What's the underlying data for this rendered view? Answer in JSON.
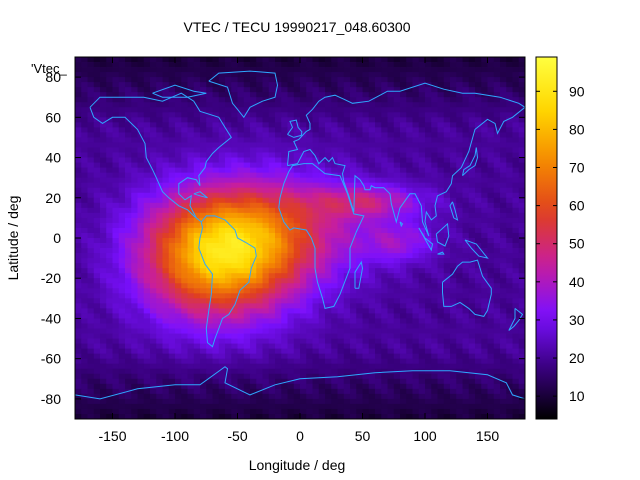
{
  "chart_data": {
    "type": "heatmap",
    "title": "VTEC / TECU 19990217_048.60300",
    "xlabel": "Longitude / deg",
    "ylabel": "Latitude / deg",
    "xlim": [
      -180,
      180
    ],
    "ylim": [
      -90,
      90
    ],
    "xticks": [
      -150,
      -100,
      -50,
      0,
      50,
      100,
      150
    ],
    "yticks": [
      -80,
      -60,
      -40,
      -20,
      0,
      20,
      40,
      60,
      80
    ],
    "colorbar": {
      "label": "",
      "range": [
        4,
        99
      ],
      "ticks": [
        10,
        20,
        30,
        40,
        50,
        60,
        70,
        80,
        90
      ],
      "palette": [
        "#000000",
        "#3a0080",
        "#7a10ff",
        "#c81e9c",
        "#e0401e",
        "#f58a00",
        "#ffd800",
        "#ffff40"
      ]
    },
    "legend": {
      "key": "'Vtec_",
      "position": "top-left"
    },
    "map_overlay": "coastlines",
    "coastline_color": "#2ea8ff",
    "peak": {
      "lon": -65,
      "lat": -10,
      "value": 78
    },
    "background_value": 20
  }
}
